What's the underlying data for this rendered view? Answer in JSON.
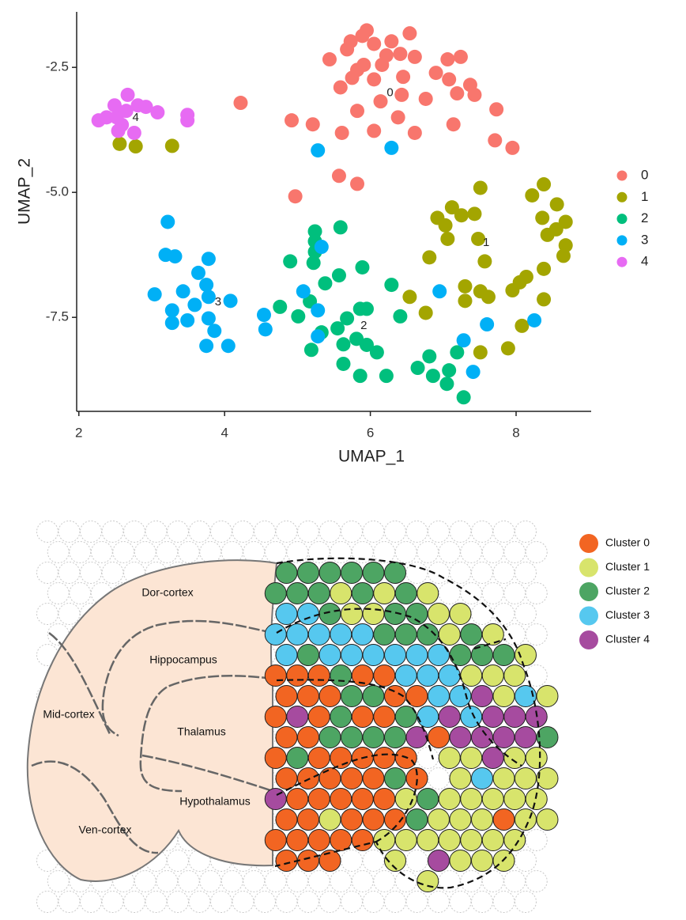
{
  "chart_data": {
    "type": "scatter",
    "x_label": "UMAP_1",
    "y_label": "UMAP_2",
    "xlim": [
      1.97,
      9.03
    ],
    "ylim": [
      -9.38,
      -1.39
    ],
    "xticks": [
      2,
      4,
      6,
      8
    ],
    "yticks": [
      -2.5,
      {
        "value": -5,
        "label": "-5.0"
      },
      -7.5
    ],
    "grid": false,
    "legend": "right",
    "series": [
      {
        "name": "0",
        "color": "#F8766D",
        "x": [
          5.95,
          5.89,
          5.73,
          6.29,
          6.54,
          5.44,
          5.68,
          6.05,
          6.22,
          6.41,
          6.61,
          6.16,
          5.82,
          5.91,
          5.75,
          5.59,
          6.05,
          6.45,
          6.9,
          7.06,
          7.24,
          7.08,
          7.37,
          7.43,
          7.19,
          6.76,
          6.43,
          6.14,
          5.82,
          6.05,
          6.38,
          6.61,
          7.14,
          7.73,
          7.71,
          7.95,
          5.61,
          5.21,
          4.92,
          4.22,
          5.57,
          5.82,
          4.97
        ],
        "values": [
          -1.76,
          -1.87,
          -1.98,
          -1.98,
          -1.82,
          -2.34,
          -2.14,
          -2.03,
          -2.26,
          -2.23,
          -2.29,
          -2.45,
          -2.55,
          -2.45,
          -2.71,
          -2.9,
          -2.74,
          -2.69,
          -2.61,
          -2.34,
          -2.29,
          -2.74,
          -2.85,
          -3.05,
          -3.02,
          -3.13,
          -3.05,
          -3.18,
          -3.37,
          -3.77,
          -3.5,
          -3.81,
          -3.64,
          -3.34,
          -3.96,
          -4.11,
          -3.81,
          -3.64,
          -3.56,
          -3.21,
          -4.67,
          -4.83,
          -5.08
        ]
      },
      {
        "name": "1",
        "color": "#A3A500",
        "x": [
          2.56,
          2.78,
          3.28,
          7.51,
          8.22,
          8.38,
          8.56,
          8.36,
          8.68,
          8.43,
          8.55,
          8.68,
          8.65,
          8.38,
          8.14,
          8.05,
          7.95,
          8.38,
          8.08,
          7.89,
          7.51,
          7.62,
          7.51,
          7.3,
          7.57,
          7.48,
          7.25,
          7.12,
          6.92,
          7.03,
          7.06,
          6.81,
          6.54,
          6.76,
          7.3,
          7.43
        ],
        "values": [
          -4.03,
          -4.08,
          -4.07,
          -4.91,
          -5.06,
          -4.84,
          -5.24,
          -5.51,
          -5.59,
          -5.85,
          -5.74,
          -6.06,
          -6.27,
          -6.53,
          -6.69,
          -6.8,
          -6.96,
          -7.14,
          -7.67,
          -8.12,
          -8.2,
          -7.09,
          -6.98,
          -7.17,
          -6.38,
          -5.93,
          -5.46,
          -5.3,
          -5.51,
          -5.66,
          -5.93,
          -6.3,
          -7.09,
          -7.41,
          -6.88,
          -5.43
        ]
      },
      {
        "name": "2",
        "color": "#00BF7D",
        "x": [
          5.24,
          5.59,
          5.24,
          4.9,
          5.22,
          5.38,
          5.57,
          5.89,
          6.29,
          6.41,
          6.65,
          6.81,
          6.86,
          7.05,
          7.08,
          7.19,
          7.28,
          4.76,
          5.01,
          5.17,
          5.19,
          5.33,
          5.55,
          5.68,
          5.86,
          5.95,
          5.63,
          5.81,
          5.95,
          6.09,
          5.63,
          5.86,
          6.22,
          5.24
        ],
        "values": [
          -5.78,
          -5.7,
          -6.19,
          -6.38,
          -6.41,
          -6.82,
          -6.66,
          -6.5,
          -6.85,
          -7.48,
          -8.51,
          -8.28,
          -8.67,
          -8.83,
          -8.56,
          -8.2,
          -9.1,
          -7.29,
          -7.48,
          -7.18,
          -8.15,
          -7.8,
          -7.72,
          -7.52,
          -7.33,
          -7.33,
          -8.04,
          -7.93,
          -8.05,
          -8.2,
          -8.43,
          -8.67,
          -8.67,
          -5.98
        ]
      },
      {
        "name": "3",
        "color": "#00B0F6",
        "x": [
          3.22,
          3.19,
          3.32,
          3.78,
          3.64,
          3.04,
          3.43,
          3.28,
          3.59,
          3.75,
          3.78,
          4.08,
          3.28,
          3.49,
          3.78,
          3.86,
          3.75,
          4.05,
          4.54,
          4.56,
          5.28,
          5.33,
          5.28,
          5.28,
          6.29,
          6.95,
          7.28,
          7.41,
          7.6,
          8.25,
          5.08
        ],
        "values": [
          -5.59,
          -6.25,
          -6.28,
          -6.33,
          -6.61,
          -7.04,
          -6.98,
          -7.36,
          -7.25,
          -6.85,
          -7.09,
          -7.17,
          -7.61,
          -7.56,
          -7.52,
          -7.77,
          -8.07,
          -8.07,
          -7.45,
          -7.74,
          -7.36,
          -6.09,
          -7.88,
          -4.16,
          -4.11,
          -6.98,
          -7.96,
          -8.59,
          -7.64,
          -7.56,
          -6.98
        ]
      },
      {
        "name": "4",
        "color": "#E76BF3",
        "x": [
          2.27,
          2.38,
          2.49,
          2.52,
          2.67,
          2.65,
          2.81,
          2.92,
          2.59,
          2.54,
          2.76,
          3.08,
          3.49,
          3.49
        ],
        "values": [
          -3.56,
          -3.5,
          -3.26,
          -3.5,
          -3.05,
          -3.37,
          -3.26,
          -3.29,
          -3.65,
          -3.77,
          -3.81,
          -3.4,
          -3.45,
          -3.56
        ]
      }
    ],
    "annotations": [
      {
        "text": "0",
        "x": 6.27,
        "y": -3.01
      },
      {
        "text": "1",
        "x": 7.59,
        "y": -6.01
      },
      {
        "text": "2",
        "x": 5.91,
        "y": -7.67
      },
      {
        "text": "3",
        "x": 3.91,
        "y": -7.2
      },
      {
        "text": "4",
        "x": 2.78,
        "y": -3.51
      }
    ]
  },
  "spatial": {
    "clusters": [
      {
        "label": "Cluster 0",
        "color": "#F26522"
      },
      {
        "label": "Cluster 1",
        "color": "#D8E46C"
      },
      {
        "label": "Cluster 2",
        "color": "#4DA563"
      },
      {
        "label": "Cluster 3",
        "color": "#56C8EF"
      },
      {
        "label": "Cluster 4",
        "color": "#A64B9F"
      }
    ],
    "regions": [
      "Dor-cortex",
      "Hippocampus",
      "Mid-cortex",
      "Thalamus",
      "Hypothalamus",
      "Ven-cortex"
    ],
    "rows": [
      [
        2,
        2,
        2,
        2,
        2,
        2
      ],
      [
        2,
        2,
        2,
        1,
        2,
        1,
        2,
        1
      ],
      [
        3,
        3,
        2,
        1,
        1,
        2,
        2,
        1,
        1
      ],
      [
        3,
        3,
        3,
        3,
        3,
        2,
        2,
        2,
        1,
        2,
        1
      ],
      [
        3,
        2,
        3,
        3,
        3,
        3,
        3,
        3,
        2,
        2,
        2,
        1
      ],
      [
        0,
        0,
        0,
        2,
        0,
        0,
        3,
        3,
        3,
        1,
        1,
        1
      ],
      [
        0,
        0,
        0,
        2,
        2,
        0,
        0,
        3,
        3,
        4,
        1,
        3,
        1
      ],
      [
        0,
        4,
        0,
        2,
        0,
        0,
        2,
        3,
        4,
        3,
        4,
        4,
        4
      ],
      [
        0,
        0,
        2,
        2,
        2,
        2,
        4,
        0,
        4,
        4,
        4,
        4,
        2
      ],
      [
        0,
        2,
        0,
        0,
        0,
        0,
        0,
        null,
        1,
        1,
        4,
        1,
        1
      ],
      [
        0,
        0,
        0,
        0,
        0,
        2,
        0,
        null,
        1,
        3,
        1,
        1,
        1
      ],
      [
        4,
        0,
        0,
        0,
        0,
        0,
        1,
        2,
        1,
        1,
        1,
        1,
        1
      ],
      [
        0,
        0,
        1,
        0,
        0,
        0,
        2,
        1,
        1,
        1,
        0,
        1,
        1
      ],
      [
        0,
        0,
        0,
        0,
        0,
        1,
        1,
        1,
        1,
        1,
        1,
        1
      ],
      [
        0,
        0,
        0,
        null,
        null,
        1,
        null,
        4,
        1,
        1,
        1
      ],
      [
        null,
        null,
        null,
        null,
        null,
        null,
        null,
        1
      ]
    ]
  }
}
